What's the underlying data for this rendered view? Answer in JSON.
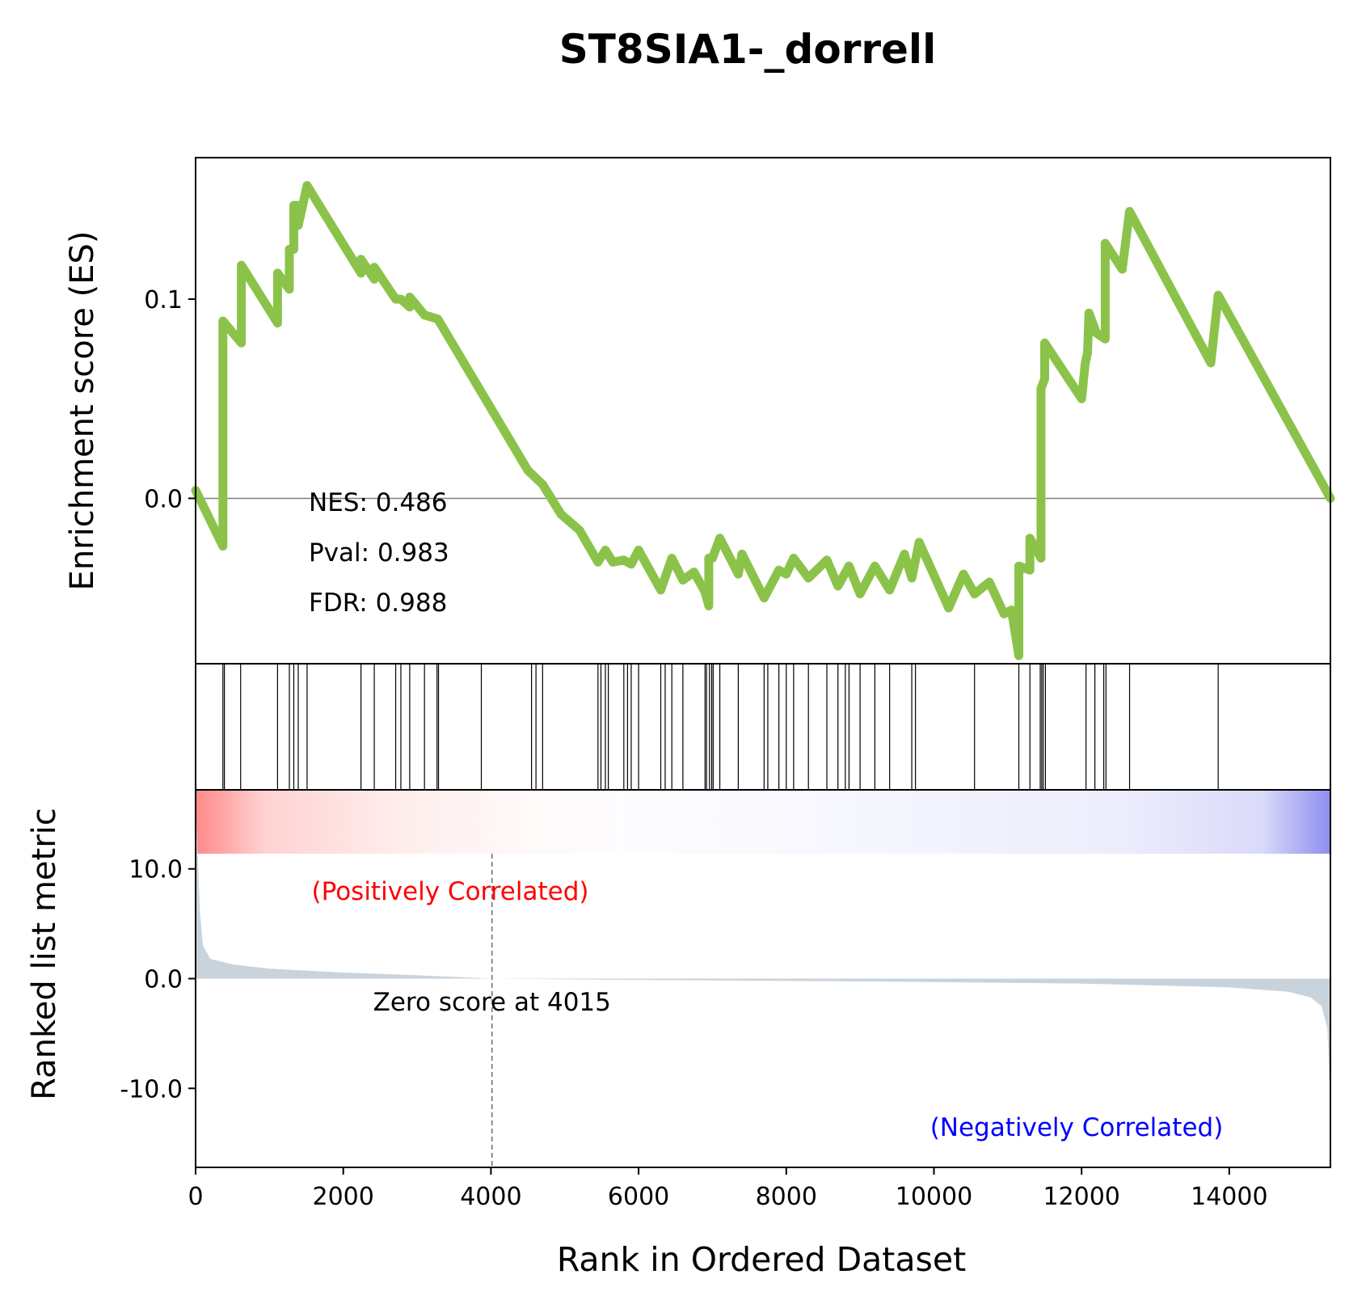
{
  "title": "ST8SIA1-_dorrell",
  "chart_data": {
    "type": "line",
    "title": "ST8SIA1-_dorrell",
    "xlabel": "Rank in Ordered Dataset",
    "xlim": [
      0,
      15370
    ],
    "x_ticks": [
      "0",
      "2000",
      "4000",
      "6000",
      "8000",
      "10000",
      "12000",
      "14000"
    ],
    "es_panel": {
      "ylabel": "Enrichment score (ES)",
      "ylim": [
        -0.083,
        0.171
      ],
      "y_ticks": [
        {
          "v": 0.1,
          "label": "0.1"
        },
        {
          "v": 0.0,
          "label": "0.0"
        }
      ],
      "line_color": "#8bc34a",
      "running_es": [
        [
          0,
          0.004
        ],
        [
          370,
          -0.024
        ],
        [
          370,
          0.089
        ],
        [
          620,
          0.078
        ],
        [
          620,
          0.117
        ],
        [
          1110,
          0.088
        ],
        [
          1110,
          0.113
        ],
        [
          1270,
          0.105
        ],
        [
          1270,
          0.125
        ],
        [
          1330,
          0.125
        ],
        [
          1330,
          0.147
        ],
        [
          1390,
          0.147
        ],
        [
          1390,
          0.137
        ],
        [
          1510,
          0.157
        ],
        [
          2240,
          0.113
        ],
        [
          2240,
          0.12
        ],
        [
          2420,
          0.11
        ],
        [
          2420,
          0.116
        ],
        [
          2710,
          0.1
        ],
        [
          2780,
          0.1
        ],
        [
          2900,
          0.096
        ],
        [
          2900,
          0.101
        ],
        [
          3100,
          0.092
        ],
        [
          3280,
          0.09
        ],
        [
          4500,
          0.014
        ],
        [
          4700,
          0.007
        ],
        [
          4950,
          -0.008
        ],
        [
          5200,
          -0.016
        ],
        [
          5450,
          -0.032
        ],
        [
          5550,
          -0.026
        ],
        [
          5650,
          -0.032
        ],
        [
          5800,
          -0.031
        ],
        [
          5900,
          -0.033
        ],
        [
          6000,
          -0.026
        ],
        [
          6300,
          -0.046
        ],
        [
          6450,
          -0.03
        ],
        [
          6600,
          -0.041
        ],
        [
          6750,
          -0.037
        ],
        [
          6900,
          -0.047
        ],
        [
          6950,
          -0.054
        ],
        [
          6950,
          -0.03
        ],
        [
          7000,
          -0.03
        ],
        [
          7100,
          -0.02
        ],
        [
          7350,
          -0.038
        ],
        [
          7400,
          -0.028
        ],
        [
          7700,
          -0.05
        ],
        [
          7900,
          -0.036
        ],
        [
          8000,
          -0.038
        ],
        [
          8100,
          -0.03
        ],
        [
          8300,
          -0.04
        ],
        [
          8550,
          -0.031
        ],
        [
          8700,
          -0.044
        ],
        [
          8850,
          -0.034
        ],
        [
          9000,
          -0.048
        ],
        [
          9200,
          -0.034
        ],
        [
          9400,
          -0.046
        ],
        [
          9600,
          -0.028
        ],
        [
          9700,
          -0.04
        ],
        [
          9800,
          -0.022
        ],
        [
          10200,
          -0.055
        ],
        [
          10400,
          -0.038
        ],
        [
          10550,
          -0.048
        ],
        [
          10750,
          -0.042
        ],
        [
          10950,
          -0.058
        ],
        [
          11050,
          -0.056
        ],
        [
          11150,
          -0.079
        ],
        [
          11150,
          -0.034
        ],
        [
          11300,
          -0.036
        ],
        [
          11300,
          -0.02
        ],
        [
          11450,
          -0.03
        ],
        [
          11450,
          0.055
        ],
        [
          11500,
          0.06
        ],
        [
          11500,
          0.078
        ],
        [
          12000,
          0.05
        ],
        [
          12050,
          0.068
        ],
        [
          12080,
          0.073
        ],
        [
          12100,
          0.093
        ],
        [
          12200,
          0.083
        ],
        [
          12320,
          0.08
        ],
        [
          12320,
          0.128
        ],
        [
          12550,
          0.115
        ],
        [
          12650,
          0.144
        ],
        [
          13750,
          0.068
        ],
        [
          13850,
          0.102
        ],
        [
          15370,
          0.0
        ]
      ],
      "stats": {
        "nes": "NES: 0.486",
        "pval": "Pval: 0.983",
        "fdr": "FDR: 0.988"
      }
    },
    "hits_panel": {
      "hit_ranks": [
        370,
        390,
        610,
        1110,
        1270,
        1330,
        1390,
        1510,
        2240,
        2420,
        2710,
        2780,
        2900,
        3100,
        3270,
        3290,
        3870,
        4550,
        4610,
        4700,
        5450,
        5490,
        5550,
        5590,
        5800,
        5850,
        5900,
        6000,
        6300,
        6360,
        6450,
        6600,
        6900,
        6920,
        6960,
        6990,
        7010,
        7100,
        7350,
        7700,
        7750,
        7900,
        8000,
        8100,
        8300,
        8550,
        8700,
        8800,
        8850,
        9000,
        9200,
        9400,
        9700,
        9750,
        10550,
        11150,
        11300,
        11440,
        11460,
        11480,
        11510,
        12060,
        12180,
        12300,
        12330,
        12650,
        13850
      ]
    },
    "metric_panel": {
      "ylabel": "Ranked list metric",
      "ylim": [
        -17.2,
        17.2
      ],
      "y_ticks": [
        {
          "v": 10,
          "label": "10.0"
        },
        {
          "v": 0,
          "label": "0.0"
        },
        {
          "v": -10,
          "label": "-10.0"
        }
      ],
      "fill_color": "#c9d3dc",
      "metric_curve": [
        [
          0,
          16
        ],
        [
          30,
          11
        ],
        [
          60,
          6
        ],
        [
          100,
          3
        ],
        [
          200,
          1.8
        ],
        [
          500,
          1.3
        ],
        [
          1000,
          0.9
        ],
        [
          2000,
          0.55
        ],
        [
          3000,
          0.3
        ],
        [
          4015,
          0
        ],
        [
          6000,
          -0.12
        ],
        [
          9000,
          -0.25
        ],
        [
          12000,
          -0.45
        ],
        [
          14000,
          -0.8
        ],
        [
          14800,
          -1.2
        ],
        [
          15100,
          -1.7
        ],
        [
          15250,
          -2.5
        ],
        [
          15330,
          -4.5
        ],
        [
          15360,
          -10
        ],
        [
          15370,
          -17
        ]
      ],
      "zero_score": {
        "rank": 4015,
        "label": "Zero score at 4015"
      },
      "pos_label": "(Positively Correlated)",
      "neg_label": "(Negatively Correlated)"
    }
  }
}
